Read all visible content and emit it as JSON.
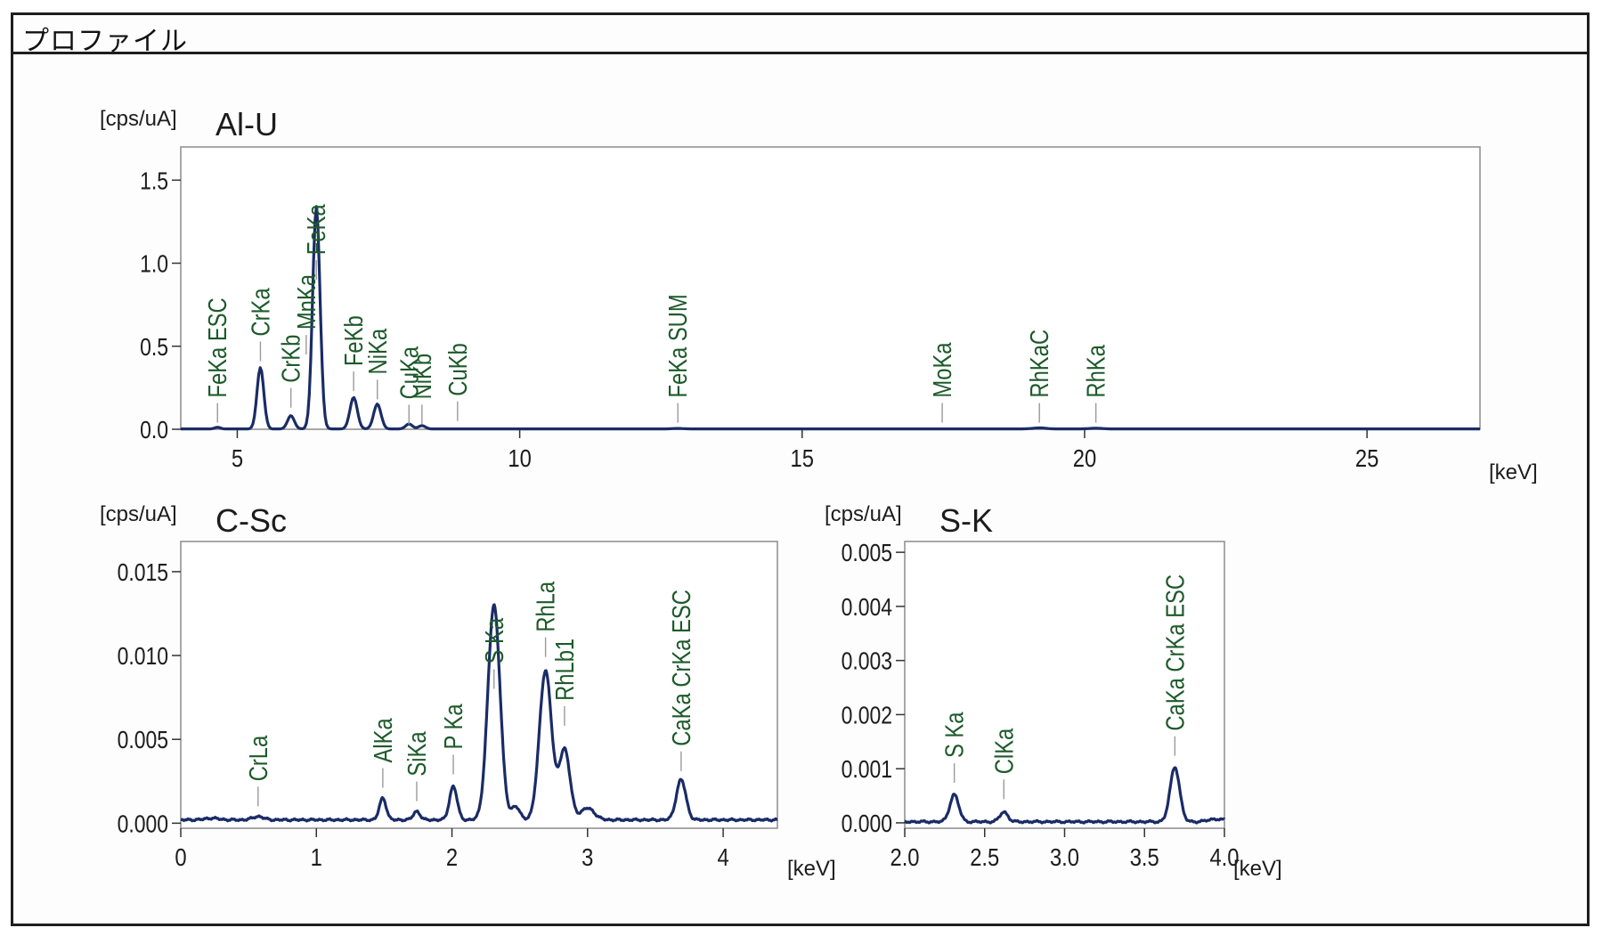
{
  "panel": {
    "title": "プロファイル"
  },
  "chart_data": [
    {
      "type": "line",
      "id": "al-u",
      "title": "Al-U",
      "ylabel": "[cps/uA]",
      "xlabel": "[keV]",
      "xlim": [
        4.0,
        27.0
      ],
      "ylim": [
        0.0,
        1.7
      ],
      "xticks": [
        5,
        10,
        15,
        20,
        25
      ],
      "yticks": [
        0.0,
        0.5,
        1.0,
        1.5
      ],
      "ytick_labels": [
        "0.0",
        "0.5",
        "1.0",
        "1.5"
      ],
      "baseline": 0.002,
      "peaks": [
        {
          "x": 4.65,
          "y": 0.01,
          "w": 0.05
        },
        {
          "x": 5.41,
          "y": 0.37,
          "w": 0.06
        },
        {
          "x": 5.95,
          "y": 0.08,
          "w": 0.06
        },
        {
          "x": 6.4,
          "y": 1.34,
          "w": 0.065
        },
        {
          "x": 7.06,
          "y": 0.19,
          "w": 0.065
        },
        {
          "x": 7.48,
          "y": 0.15,
          "w": 0.065
        },
        {
          "x": 8.04,
          "y": 0.03,
          "w": 0.06
        },
        {
          "x": 8.27,
          "y": 0.02,
          "w": 0.06
        },
        {
          "x": 12.8,
          "y": 0.003,
          "w": 0.1
        },
        {
          "x": 19.2,
          "y": 0.006,
          "w": 0.12
        },
        {
          "x": 20.2,
          "y": 0.004,
          "w": 0.12
        }
      ],
      "labels": [
        {
          "text": "FeKa ESC",
          "x": 4.65,
          "y": 0.19
        },
        {
          "text": "CrKa",
          "x": 5.41,
          "y": 0.56
        },
        {
          "text": "CrKb",
          "x": 5.95,
          "y": 0.28
        },
        {
          "text": "MnKa",
          "x": 6.22,
          "y": 0.6
        },
        {
          "text": "FeKa",
          "x": 6.4,
          "y": 1.05
        },
        {
          "text": "FeKb",
          "x": 7.06,
          "y": 0.38
        },
        {
          "text": "NiKa",
          "x": 7.48,
          "y": 0.33
        },
        {
          "text": "CuKa",
          "x": 8.04,
          "y": 0.18
        },
        {
          "text": "NiKb",
          "x": 8.27,
          "y": 0.18
        },
        {
          "text": "CuKb",
          "x": 8.9,
          "y": 0.2
        },
        {
          "text": "FeKa SUM",
          "x": 12.8,
          "y": 0.19
        },
        {
          "text": "MoKa",
          "x": 17.48,
          "y": 0.19
        },
        {
          "text": "RhKaC",
          "x": 19.2,
          "y": 0.19
        },
        {
          "text": "RhKa",
          "x": 20.2,
          "y": 0.19
        }
      ]
    },
    {
      "type": "line",
      "id": "c-sc",
      "title": "C-Sc",
      "ylabel": "[cps/uA]",
      "xlabel": "[keV]",
      "xlim": [
        0.0,
        4.4
      ],
      "ylim": [
        -0.0003,
        0.0168
      ],
      "xticks": [
        0,
        1,
        2,
        3,
        4
      ],
      "yticks": [
        0.0,
        0.005,
        0.01,
        0.015
      ],
      "ytick_labels": [
        "0.000",
        "0.005",
        "0.010",
        "0.015"
      ],
      "baseline": 0.0002,
      "peaks": [
        {
          "x": 0.23,
          "y": 0.0001,
          "w": 0.05
        },
        {
          "x": 0.57,
          "y": 0.0002,
          "w": 0.04
        },
        {
          "x": 1.49,
          "y": 0.0013,
          "w": 0.025
        },
        {
          "x": 1.74,
          "y": 0.0005,
          "w": 0.025
        },
        {
          "x": 2.01,
          "y": 0.002,
          "w": 0.028
        },
        {
          "x": 2.31,
          "y": 0.0128,
          "w": 0.045
        },
        {
          "x": 2.47,
          "y": 0.0008,
          "w": 0.03
        },
        {
          "x": 2.69,
          "y": 0.0089,
          "w": 0.045
        },
        {
          "x": 2.83,
          "y": 0.0042,
          "w": 0.04
        },
        {
          "x": 3.0,
          "y": 0.0007,
          "w": 0.05
        },
        {
          "x": 3.69,
          "y": 0.0024,
          "w": 0.035
        }
      ],
      "labels": [
        {
          "text": "CrLa",
          "x": 0.57,
          "y": 0.0025
        },
        {
          "text": "AlKa",
          "x": 1.49,
          "y": 0.0036
        },
        {
          "text": "SiKa",
          "x": 1.74,
          "y": 0.0028
        },
        {
          "text": "P Ka",
          "x": 2.01,
          "y": 0.0044
        },
        {
          "text": "S Ka",
          "x": 2.31,
          "y": 0.0095
        },
        {
          "text": "RhLa",
          "x": 2.69,
          "y": 0.0114
        },
        {
          "text": "RhLb1",
          "x": 2.83,
          "y": 0.0073
        },
        {
          "text": "CaKa CrKa ESC",
          "x": 3.69,
          "y": 0.0046
        }
      ]
    },
    {
      "type": "line",
      "id": "s-k",
      "title": "S-K",
      "ylabel": "[cps/uA]",
      "xlabel": "[keV]",
      "xlim": [
        2.0,
        4.0
      ],
      "ylim": [
        -0.0001,
        0.0052
      ],
      "xticks": [
        2.0,
        2.5,
        3.0,
        3.5,
        4.0
      ],
      "xtick_labels": [
        "2.0",
        "2.5",
        "3.0",
        "3.5",
        "4.0"
      ],
      "yticks": [
        0.0,
        0.001,
        0.002,
        0.003,
        0.004,
        0.005
      ],
      "ytick_labels": [
        "0.000",
        "0.001",
        "0.002",
        "0.003",
        "0.004",
        "0.005"
      ],
      "baseline": 2e-05,
      "peaks": [
        {
          "x": 2.31,
          "y": 0.0005,
          "w": 0.028
        },
        {
          "x": 2.62,
          "y": 0.00018,
          "w": 0.025
        },
        {
          "x": 3.69,
          "y": 0.00101,
          "w": 0.03
        },
        {
          "x": 3.95,
          "y": 5e-05,
          "w": 0.05
        }
      ],
      "labels": [
        {
          "text": "S Ka",
          "x": 2.31,
          "y": 0.0012
        },
        {
          "text": "ClKa",
          "x": 2.62,
          "y": 0.0009
        },
        {
          "text": "CaKa CrKa ESC",
          "x": 3.69,
          "y": 0.0017
        }
      ]
    }
  ]
}
